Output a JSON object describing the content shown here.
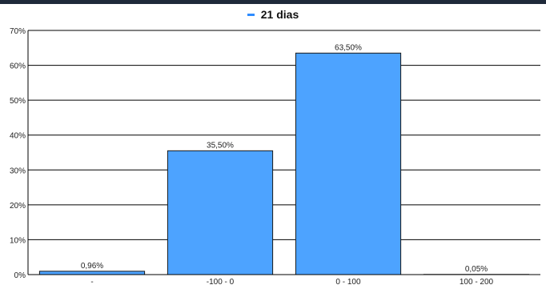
{
  "chart_data": {
    "type": "bar",
    "series": [
      {
        "name": "21 dias",
        "values": [
          0.96,
          35.5,
          63.5,
          0.05
        ]
      }
    ],
    "categories": [
      "-",
      "-100 - 0",
      "0 - 100",
      "100 - 200"
    ],
    "data_labels": [
      "0,96%",
      "35,50%",
      "63,50%",
      "0,05%"
    ],
    "ylim": [
      0,
      70
    ],
    "yticks": [
      0,
      10,
      20,
      30,
      40,
      50,
      60,
      70
    ],
    "ytick_labels": [
      "0%",
      "10%",
      "20%",
      "30%",
      "40%",
      "50%",
      "60%",
      "70%"
    ],
    "grid": true,
    "legend_position": "top",
    "colors": {
      "bar": "#4da3ff",
      "bar_stroke": "#1a1a1a",
      "legend": "#2f8cff",
      "topbar": "#1f2a3a"
    }
  }
}
